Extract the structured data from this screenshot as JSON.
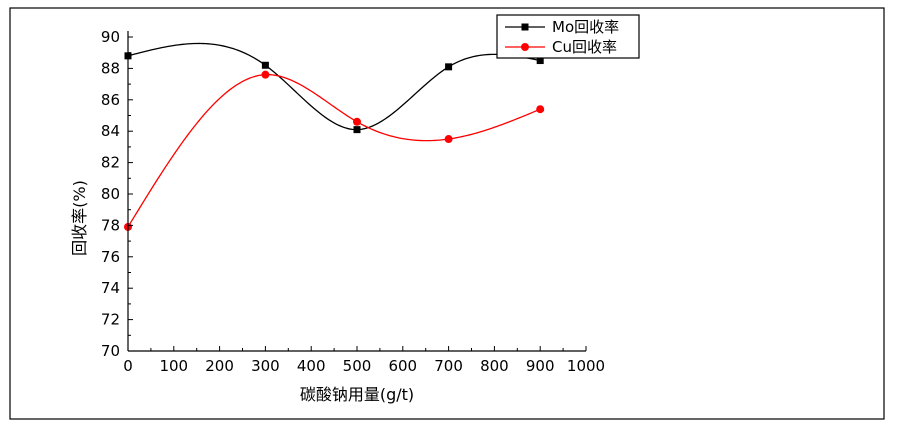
{
  "chart_data": {
    "type": "line",
    "xlabel": "碳酸钠用量(g/t)",
    "ylabel": "回收率(%)",
    "xlim": [
      0,
      1000
    ],
    "ylim": [
      70,
      90
    ],
    "x_ticks": [
      0,
      100,
      200,
      300,
      400,
      500,
      600,
      700,
      800,
      900,
      1000
    ],
    "y_ticks": [
      70,
      72,
      74,
      76,
      78,
      80,
      82,
      84,
      86,
      88,
      90
    ],
    "grid": false,
    "legend_position": "top-right",
    "series": [
      {
        "name": "Mo回收率",
        "color": "#000000",
        "marker": "square",
        "x": [
          0,
          300,
          500,
          700,
          900
        ],
        "y": [
          88.8,
          88.2,
          84.1,
          88.1,
          88.5
        ]
      },
      {
        "name": "Cu回收率",
        "color": "#ff0000",
        "marker": "circle",
        "x": [
          0,
          300,
          500,
          700,
          900
        ],
        "y": [
          77.9,
          87.6,
          84.6,
          83.5,
          85.4
        ]
      }
    ]
  }
}
